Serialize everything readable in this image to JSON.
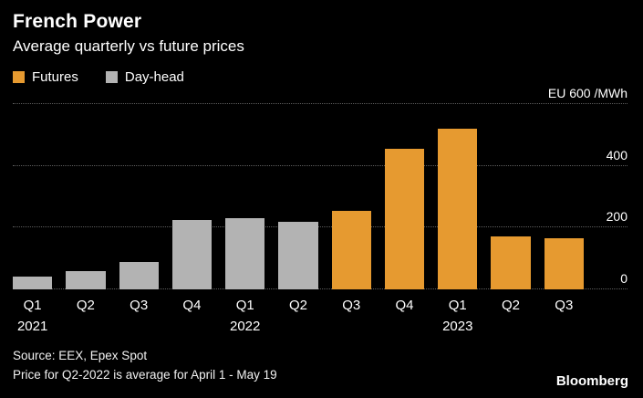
{
  "header": {
    "title": "French Power",
    "subtitle": "Average quarterly vs future prices"
  },
  "legend": [
    {
      "label": "Futures",
      "color": "#E69A30"
    },
    {
      "label": "Day-head",
      "color": "#B3B3B3"
    }
  ],
  "axis": {
    "top_label": "EU 600 /MWh",
    "ticks": [
      400,
      200,
      0
    ]
  },
  "chart_data": {
    "type": "bar",
    "title": "French Power",
    "subtitle": "Average quarterly vs future prices",
    "ylabel": "EU /MWh",
    "ylim": [
      0,
      600
    ],
    "gridlines": [
      0,
      200,
      400,
      600
    ],
    "legend_position": "top-left",
    "bars": [
      {
        "quarter": "Q1",
        "year": "2021",
        "value": 40,
        "series": "Day-head",
        "show_year": true
      },
      {
        "quarter": "Q2",
        "year": "2021",
        "value": 60,
        "series": "Day-head",
        "show_year": false
      },
      {
        "quarter": "Q3",
        "year": "2021",
        "value": 90,
        "series": "Day-head",
        "show_year": false
      },
      {
        "quarter": "Q4",
        "year": "2021",
        "value": 225,
        "series": "Day-head",
        "show_year": false
      },
      {
        "quarter": "Q1",
        "year": "2022",
        "value": 230,
        "series": "Day-head",
        "show_year": true
      },
      {
        "quarter": "Q2",
        "year": "2022",
        "value": 220,
        "series": "Day-head",
        "show_year": false
      },
      {
        "quarter": "Q3",
        "year": "2022",
        "value": 255,
        "series": "Futures",
        "show_year": false
      },
      {
        "quarter": "Q4",
        "year": "2022",
        "value": 455,
        "series": "Futures",
        "show_year": false
      },
      {
        "quarter": "Q1",
        "year": "2023",
        "value": 520,
        "series": "Futures",
        "show_year": true
      },
      {
        "quarter": "Q2",
        "year": "2023",
        "value": 170,
        "series": "Futures",
        "show_year": false
      },
      {
        "quarter": "Q3",
        "year": "2023",
        "value": 165,
        "series": "Futures",
        "show_year": false
      }
    ]
  },
  "footer": {
    "source": "Source: EEX, Epex Spot",
    "note": "Price for Q2-2022 is average for April 1 - May 19",
    "brand": "Bloomberg"
  }
}
